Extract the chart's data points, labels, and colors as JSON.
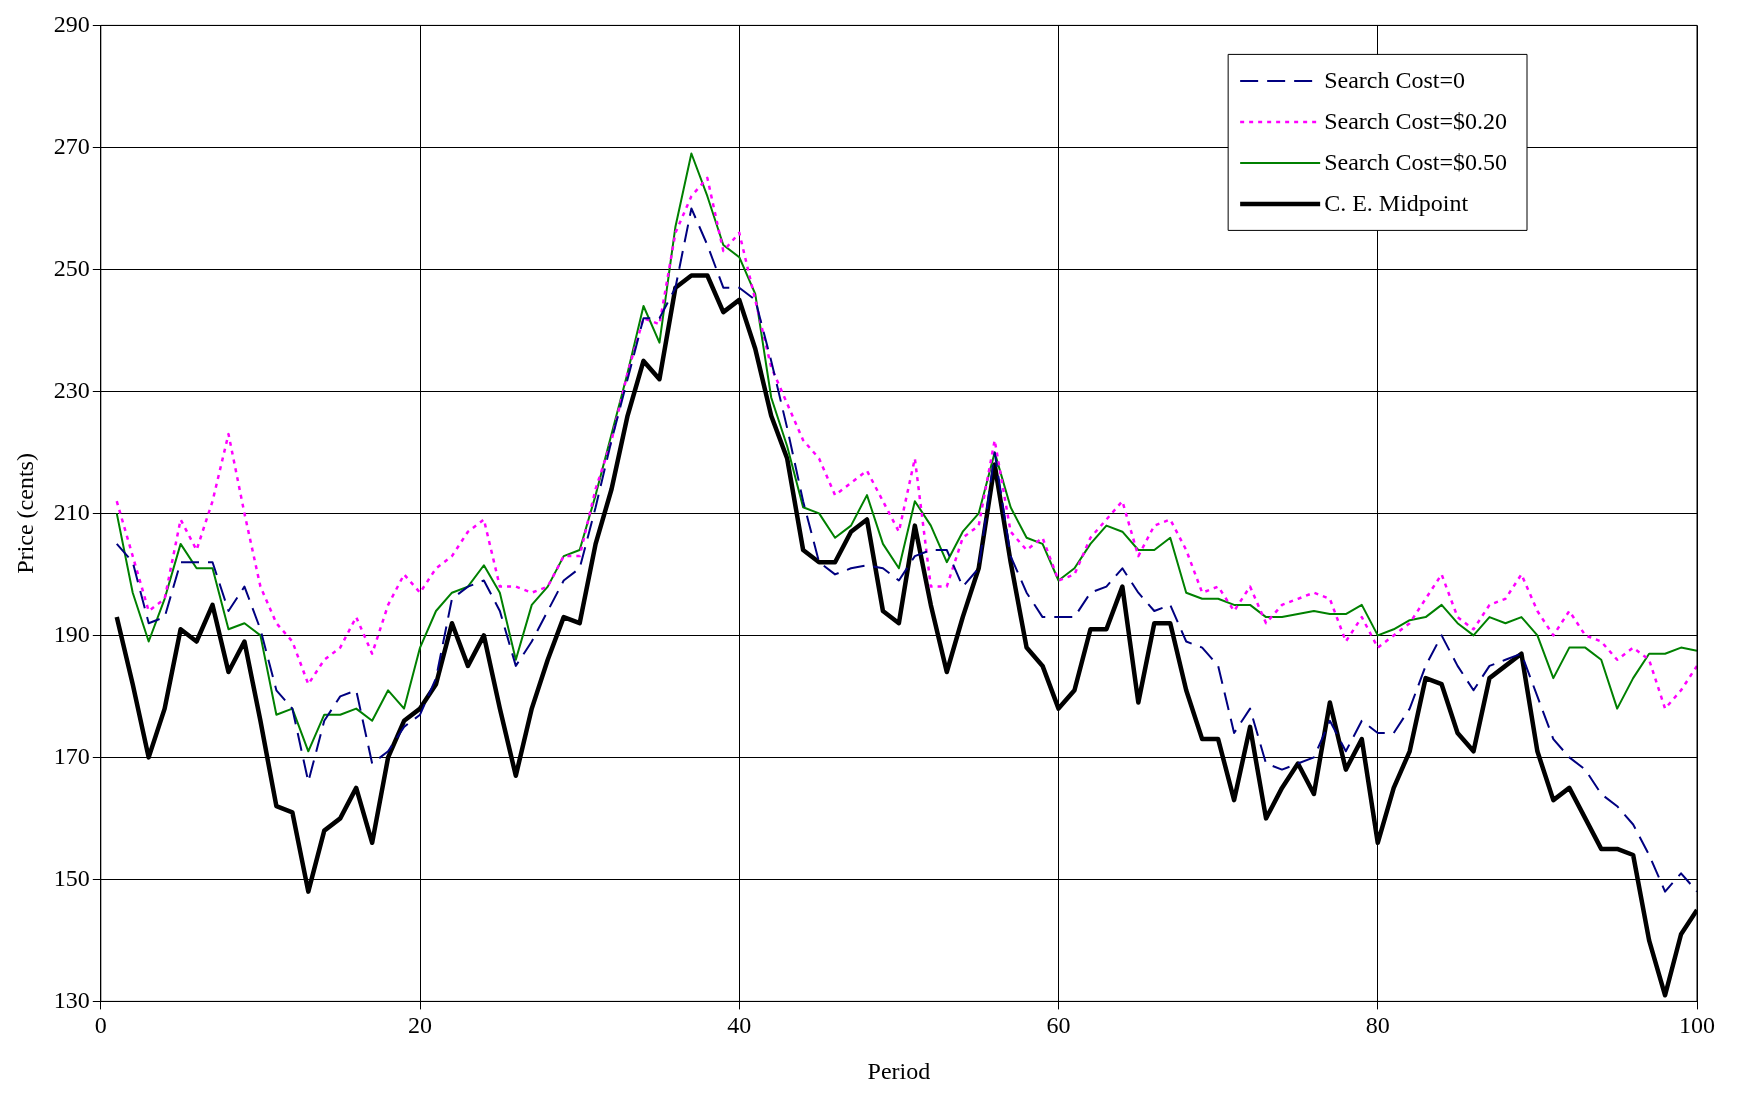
{
  "chart_data": {
    "type": "line",
    "xlabel": "Period",
    "ylabel": "Price (cents)",
    "x": [
      1,
      2,
      3,
      4,
      5,
      6,
      7,
      8,
      9,
      10,
      11,
      12,
      13,
      14,
      15,
      16,
      17,
      18,
      19,
      20,
      21,
      22,
      23,
      24,
      25,
      26,
      27,
      28,
      29,
      30,
      31,
      32,
      33,
      34,
      35,
      36,
      37,
      38,
      39,
      40,
      41,
      42,
      43,
      44,
      45,
      46,
      47,
      48,
      49,
      50,
      51,
      52,
      53,
      54,
      55,
      56,
      57,
      58,
      59,
      60,
      61,
      62,
      63,
      64,
      65,
      66,
      67,
      68,
      69,
      70,
      71,
      72,
      73,
      74,
      75,
      76,
      77,
      78,
      79,
      80,
      81,
      82,
      83,
      84,
      85,
      86,
      87,
      88,
      89,
      90,
      91,
      92,
      93,
      94,
      95,
      96,
      97,
      98,
      99,
      100
    ],
    "xlim": [
      0,
      100
    ],
    "xticks": [
      0,
      20,
      40,
      60,
      80,
      100
    ],
    "ylim": [
      130,
      290
    ],
    "yticks": [
      130,
      150,
      170,
      190,
      210,
      230,
      250,
      270,
      290
    ],
    "grid": true,
    "legend": "top right",
    "marker": "none",
    "series": [
      {
        "name": "Search Cost=0",
        "color": "#000080",
        "line_style": "dashed",
        "values": [
          205,
          202,
          192,
          193,
          202,
          202,
          202,
          194,
          198,
          191,
          181,
          178,
          166,
          176,
          180,
          181,
          169,
          171,
          175,
          177,
          183,
          196,
          198,
          199,
          194,
          185,
          189,
          194,
          199,
          201,
          211,
          222,
          232,
          242,
          242,
          247,
          260,
          254,
          247,
          247,
          245,
          235,
          224,
          212,
          202,
          200,
          201,
          201.5,
          201,
          199,
          203,
          204,
          204,
          198,
          201,
          220,
          203,
          197,
          193,
          193,
          193,
          197,
          198,
          201,
          197,
          194,
          195,
          189,
          188,
          185,
          174,
          178,
          169,
          168,
          169,
          170,
          176,
          171,
          176,
          174,
          174,
          178,
          185,
          190,
          185,
          181,
          185,
          186,
          187,
          180,
          173,
          170,
          168,
          164,
          162,
          159,
          154,
          148,
          151,
          148
        ]
      },
      {
        "name": "Search Cost=$0.20",
        "color": "#ff00ff",
        "line_style": "dotted",
        "values": [
          212,
          203,
          194,
          196,
          209,
          204,
          212,
          223,
          210,
          198,
          192,
          189,
          182,
          186,
          188,
          193,
          187,
          195,
          200,
          197,
          201,
          203,
          207,
          209,
          198,
          198,
          197,
          198,
          203,
          203,
          214,
          222,
          233,
          242,
          241,
          256,
          262,
          265,
          253,
          256,
          245,
          234,
          228,
          222,
          219,
          213,
          215,
          217,
          212,
          207,
          219,
          198,
          198,
          206,
          208,
          222,
          207,
          204,
          206,
          199,
          200,
          206,
          209,
          212,
          203,
          208,
          209,
          204,
          197,
          198,
          194,
          198,
          192,
          195,
          196,
          197,
          196,
          189,
          193,
          188,
          190,
          192,
          196,
          200,
          193,
          191,
          195,
          196,
          200,
          194,
          190,
          194,
          190,
          189,
          186,
          188,
          186,
          178,
          181,
          185
        ]
      },
      {
        "name": "Search Cost=$0.50",
        "color": "#008000",
        "line_style": "solid",
        "values": [
          210,
          197,
          189,
          196,
          205,
          201,
          201,
          191,
          192,
          190,
          177,
          178,
          171,
          177,
          177,
          178,
          176,
          181,
          178,
          188,
          194,
          197,
          198,
          201.5,
          197,
          186,
          195,
          198,
          203,
          204,
          213,
          223,
          233,
          244,
          238,
          257,
          269,
          262,
          254,
          252,
          246,
          229,
          221,
          211,
          210,
          206,
          208,
          213,
          205,
          201,
          212,
          208,
          202,
          207,
          210,
          220,
          211,
          206,
          205,
          199,
          201,
          205,
          208,
          207,
          204,
          204,
          206,
          197,
          196,
          196,
          195,
          195,
          193,
          193,
          193.5,
          194,
          193.5,
          193.5,
          195,
          190,
          191,
          192.5,
          193,
          195,
          192,
          190,
          193,
          192,
          193,
          190,
          183,
          188,
          188,
          186,
          178,
          183,
          187,
          187,
          188,
          187.5
        ]
      },
      {
        "name": "C. E. Midpoint",
        "color": "#000000",
        "line_style": "solid",
        "values": [
          193,
          182,
          170,
          178,
          191,
          189,
          195,
          184,
          189,
          176,
          162,
          161,
          148,
          158,
          160,
          165,
          156,
          170,
          176,
          178,
          182,
          192,
          185,
          190,
          178,
          167,
          178,
          186,
          193,
          192,
          205,
          214,
          226,
          235,
          232,
          247,
          249,
          249,
          243,
          245,
          237,
          226,
          219,
          204,
          202,
          202,
          207,
          209,
          194,
          192,
          208,
          195,
          184,
          193,
          201,
          218,
          202,
          188,
          185,
          178,
          181,
          191,
          191,
          198,
          179,
          192,
          192,
          181,
          173,
          173,
          163,
          175,
          160,
          165,
          169,
          164,
          179,
          168,
          173,
          156,
          165,
          171,
          183,
          182,
          174,
          171,
          183,
          185,
          187,
          171,
          163,
          165,
          160,
          155,
          155,
          154,
          140,
          131,
          141,
          145
        ]
      }
    ]
  }
}
